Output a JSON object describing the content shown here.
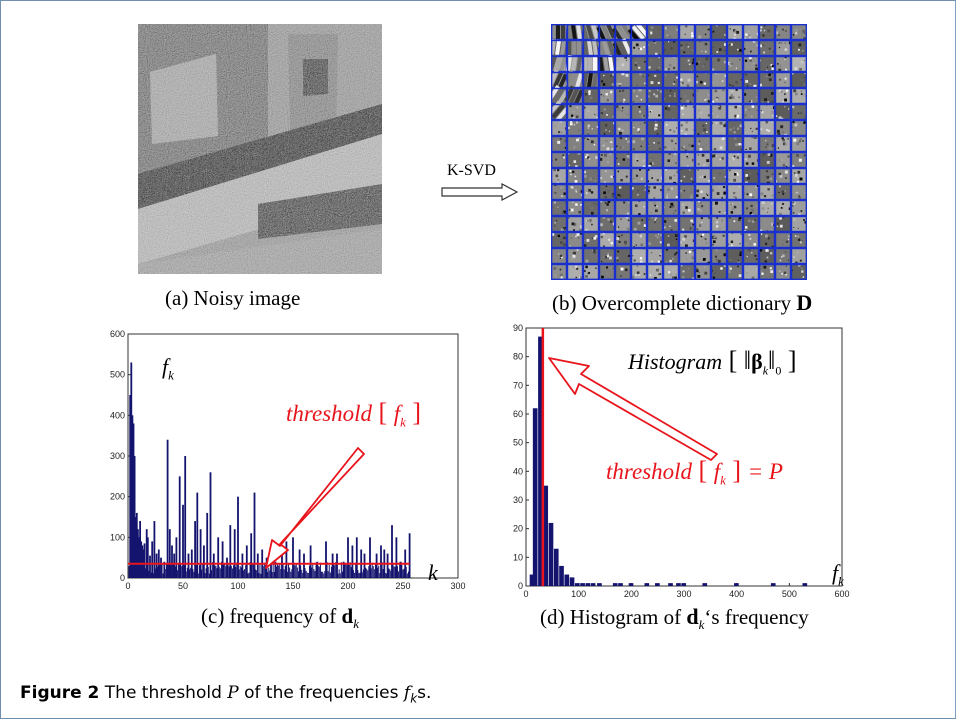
{
  "panels": {
    "a": {
      "caption": "(a) Noisy image"
    },
    "b": {
      "caption_prefix": "(b) Overcomplete dictionary ",
      "caption_symbol": "D"
    },
    "arrow_label": "K-SVD",
    "c": {
      "caption_prefix": "(c) frequency of ",
      "caption_symbol": "d",
      "caption_sub": "k",
      "label_fk": "f",
      "label_fk_sub": "k",
      "label_k": "k",
      "threshold_text": "threshold",
      "threshold_arg": "f",
      "threshold_arg_sub": "k"
    },
    "d": {
      "caption_prefix": "(d) Histogram of ",
      "caption_symbol": "d",
      "caption_sub": "k",
      "caption_suffix": "‘s frequency",
      "histogram_text": "Histogram",
      "beta": "β",
      "beta_sub": "k",
      "norm_sub": "0",
      "threshold_text": "threshold",
      "threshold_arg": "f",
      "threshold_arg_sub": "k",
      "threshold_eq": "= P",
      "label_fk": "f",
      "label_fk_sub": "k"
    }
  },
  "figure_caption": {
    "label": "Figure 2",
    "text_before": "The threshold ",
    "P": "P",
    "text_middle": " of the frequencies ",
    "f": "f",
    "k": "k",
    "text_after": "s."
  },
  "colors": {
    "accent_red": "#e8141c",
    "bar_navy": "#14146e",
    "grid_blue": "#1a2fd0"
  },
  "chart_data": [
    {
      "type": "bar",
      "id": "c",
      "xlim": [
        0,
        300
      ],
      "ylim": [
        0,
        600
      ],
      "xticks": [
        0,
        50,
        100,
        150,
        200,
        250,
        300
      ],
      "yticks": [
        0,
        100,
        200,
        300,
        400,
        500,
        600
      ],
      "threshold": 35,
      "spikes": [
        [
          2,
          450
        ],
        [
          3,
          530
        ],
        [
          4,
          400
        ],
        [
          5,
          380
        ],
        [
          6,
          300
        ],
        [
          7,
          150
        ],
        [
          8,
          160
        ],
        [
          9,
          120
        ],
        [
          10,
          100
        ],
        [
          11,
          140
        ],
        [
          12,
          90
        ],
        [
          13,
          80
        ],
        [
          14,
          70
        ],
        [
          15,
          85
        ],
        [
          17,
          120
        ],
        [
          18,
          100
        ],
        [
          20,
          55
        ],
        [
          22,
          90
        ],
        [
          24,
          140
        ],
        [
          26,
          60
        ],
        [
          28,
          70
        ],
        [
          30,
          50
        ],
        [
          33,
          40
        ],
        [
          36,
          340
        ],
        [
          38,
          120
        ],
        [
          40,
          80
        ],
        [
          42,
          60
        ],
        [
          44,
          100
        ],
        [
          47,
          250
        ],
        [
          50,
          180
        ],
        [
          52,
          300
        ],
        [
          55,
          60
        ],
        [
          58,
          70
        ],
        [
          61,
          140
        ],
        [
          63,
          210
        ],
        [
          66,
          120
        ],
        [
          69,
          80
        ],
        [
          72,
          160
        ],
        [
          75,
          260
        ],
        [
          78,
          60
        ],
        [
          82,
          100
        ],
        [
          86,
          90
        ],
        [
          90,
          50
        ],
        [
          93,
          130
        ],
        [
          97,
          120
        ],
        [
          100,
          200
        ],
        [
          104,
          60
        ],
        [
          108,
          80
        ],
        [
          112,
          110
        ],
        [
          115,
          210
        ],
        [
          118,
          60
        ],
        [
          122,
          70
        ],
        [
          126,
          50
        ],
        [
          130,
          80
        ],
        [
          134,
          40
        ],
        [
          140,
          80
        ],
        [
          144,
          90
        ],
        [
          150,
          100
        ],
        [
          156,
          70
        ],
        [
          160,
          60
        ],
        [
          166,
          80
        ],
        [
          172,
          40
        ],
        [
          180,
          90
        ],
        [
          186,
          60
        ],
        [
          190,
          60
        ],
        [
          196,
          40
        ],
        [
          200,
          100
        ],
        [
          204,
          80
        ],
        [
          208,
          100
        ],
        [
          212,
          70
        ],
        [
          215,
          60
        ],
        [
          220,
          100
        ],
        [
          226,
          60
        ],
        [
          230,
          80
        ],
        [
          233,
          70
        ],
        [
          236,
          60
        ],
        [
          240,
          130
        ],
        [
          244,
          100
        ],
        [
          248,
          40
        ],
        [
          252,
          70
        ],
        [
          256,
          110
        ]
      ]
    },
    {
      "type": "bar",
      "id": "d",
      "xlim": [
        0,
        600
      ],
      "ylim": [
        0,
        90
      ],
      "xticks": [
        0,
        100,
        200,
        300,
        400,
        500,
        600
      ],
      "yticks": [
        0,
        10,
        20,
        30,
        40,
        50,
        60,
        70,
        80,
        90
      ],
      "threshold": 32,
      "bins": [
        [
          12,
          4
        ],
        [
          18,
          62
        ],
        [
          28,
          87
        ],
        [
          38,
          35
        ],
        [
          48,
          22
        ],
        [
          58,
          13
        ],
        [
          68,
          7
        ],
        [
          78,
          4
        ],
        [
          88,
          3
        ],
        [
          98,
          1
        ],
        [
          108,
          1
        ],
        [
          118,
          1
        ],
        [
          128,
          1
        ],
        [
          140,
          1
        ],
        [
          170,
          1
        ],
        [
          180,
          1
        ],
        [
          200,
          1
        ],
        [
          230,
          1
        ],
        [
          250,
          1
        ],
        [
          275,
          1
        ],
        [
          290,
          1
        ],
        [
          300,
          1
        ],
        [
          340,
          1
        ],
        [
          400,
          1
        ],
        [
          470,
          1
        ],
        [
          530,
          1
        ]
      ]
    }
  ]
}
